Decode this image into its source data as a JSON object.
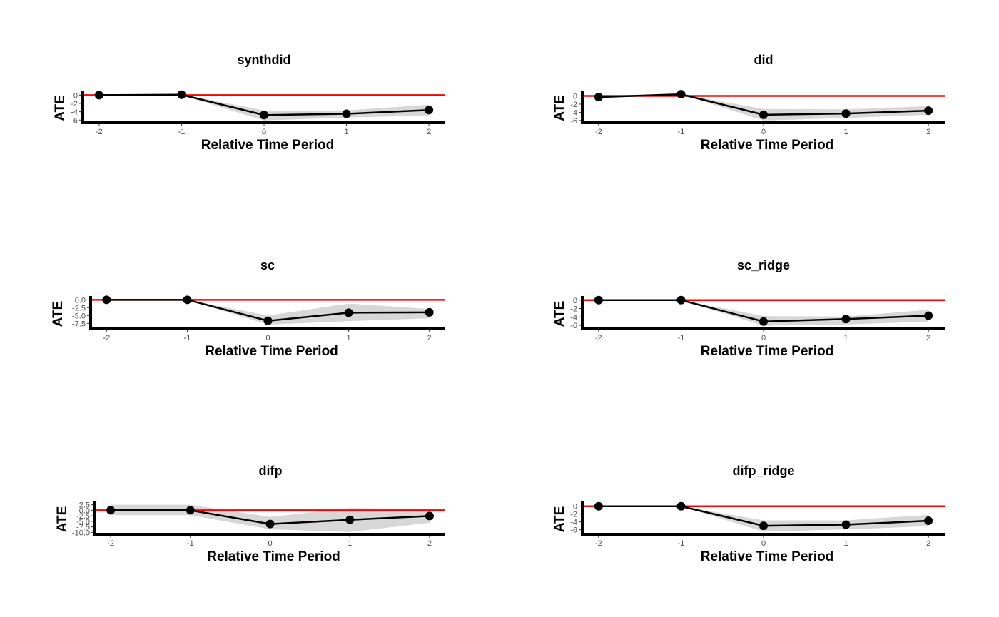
{
  "chart_data": [
    {
      "type": "line",
      "title": "synthdid",
      "xlabel": "Relative Time Period",
      "ylabel": "ATE",
      "x": [
        -2,
        -1,
        0,
        1,
        2
      ],
      "xticks": [
        "-2",
        "-1",
        "0",
        "1",
        "2"
      ],
      "yticks": [
        "0",
        "-2",
        "-4",
        "-6"
      ],
      "ylim": [
        -6.3,
        0.4
      ],
      "series": [
        {
          "values": [
            0,
            0.1,
            -4.8,
            -4.5,
            -3.6
          ]
        }
      ],
      "band": {
        "lower": [
          0,
          0,
          -6.1,
          -5.4,
          -4.9
        ],
        "upper": [
          0,
          0.2,
          -3.7,
          -3.7,
          -2.3
        ]
      },
      "reference_line": 0,
      "colors": {
        "line": "#000000",
        "reference": "#ff0000",
        "band": "#d3d3d3"
      },
      "grid": false
    },
    {
      "type": "line",
      "title": "did",
      "xlabel": "Relative Time Period",
      "ylabel": "ATE",
      "x": [
        -2,
        -1,
        0,
        1,
        2
      ],
      "xticks": [
        "-2",
        "-1",
        "0",
        "1",
        "2"
      ],
      "yticks": [
        "0",
        "-2",
        "-4",
        "-6"
      ],
      "ylim": [
        -6.2,
        0.6
      ],
      "series": [
        {
          "values": [
            -0.3,
            0.4,
            -4.6,
            -4.3,
            -3.6
          ]
        }
      ],
      "band": {
        "lower": [
          -0.3,
          0.4,
          -6.0,
          -5.4,
          -4.6
        ],
        "upper": [
          -0.3,
          0.4,
          -3.2,
          -3.3,
          -2.5
        ]
      },
      "reference_line": 0,
      "colors": {
        "line": "#000000",
        "reference": "#ff0000",
        "band": "#d3d3d3"
      },
      "grid": false
    },
    {
      "type": "line",
      "title": "sc",
      "xlabel": "Relative Time Period",
      "ylabel": "ATE",
      "x": [
        -2,
        -1,
        0,
        1,
        2
      ],
      "xticks": [
        "-2",
        "-1",
        "0",
        "1",
        "2"
      ],
      "yticks": [
        "0.0",
        "-2.5",
        "-5.0",
        "-7.5"
      ],
      "ylim": [
        -8.8,
        0.3
      ],
      "series": [
        {
          "values": [
            0,
            0,
            -6.7,
            -4.1,
            -4.0
          ]
        }
      ],
      "band": {
        "lower": [
          0,
          0,
          -7.9,
          -6.8,
          -5.9
        ],
        "upper": [
          0,
          0,
          -5.0,
          -1.2,
          -2.9
        ]
      },
      "reference_line": 0,
      "colors": {
        "line": "#000000",
        "reference": "#ff0000",
        "band": "#d3d3d3"
      },
      "grid": false
    },
    {
      "type": "line",
      "title": "sc_ridge",
      "xlabel": "Relative Time Period",
      "ylabel": "ATE",
      "x": [
        -2,
        -1,
        0,
        1,
        2
      ],
      "xticks": [
        "-2",
        "-1",
        "0",
        "1",
        "2"
      ],
      "yticks": [
        "0",
        "-2",
        "-4",
        "-6"
      ],
      "ylim": [
        -6.5,
        0.3
      ],
      "series": [
        {
          "values": [
            0,
            0,
            -5.1,
            -4.5,
            -3.7
          ]
        }
      ],
      "band": {
        "lower": [
          0,
          0,
          -6.1,
          -5.8,
          -5.1
        ],
        "upper": [
          0,
          0,
          -3.8,
          -3.9,
          -2.3
        ]
      },
      "reference_line": 0,
      "colors": {
        "line": "#000000",
        "reference": "#ff0000",
        "band": "#d3d3d3"
      },
      "grid": false
    },
    {
      "type": "line",
      "title": "difp",
      "xlabel": "Relative Time Period",
      "ylabel": "ATE",
      "x": [
        -2,
        -1,
        0,
        1,
        2
      ],
      "xticks": [
        "-2",
        "-1",
        "0",
        "1",
        "2"
      ],
      "yticks": [
        "2.5",
        "0.0",
        "-2.5",
        "-5.0",
        "-7.5",
        "-10.0"
      ],
      "ylim": [
        -10.2,
        2.7
      ],
      "series": [
        {
          "values": [
            0.0,
            0.0,
            -6.2,
            -4.3,
            -2.6
          ]
        }
      ],
      "band": {
        "lower": [
          -2.2,
          -2.2,
          -8.6,
          -9.8,
          -5.7
        ],
        "upper": [
          2.5,
          2.5,
          -3.0,
          1.0,
          0.5
        ]
      },
      "reference_line": 0,
      "colors": {
        "line": "#000000",
        "reference": "#ff0000",
        "band": "#d3d3d3"
      },
      "grid": false
    },
    {
      "type": "line",
      "title": "difp_ridge",
      "xlabel": "Relative Time Period",
      "ylabel": "ATE",
      "x": [
        -2,
        -1,
        0,
        1,
        2
      ],
      "xticks": [
        "-2",
        "-1",
        "0",
        "1",
        "2"
      ],
      "yticks": [
        "0",
        "-2",
        "-4",
        "-6"
      ],
      "ylim": [
        -6.8,
        0.5
      ],
      "series": [
        {
          "values": [
            0,
            0,
            -5.0,
            -4.7,
            -3.7
          ]
        }
      ],
      "band": {
        "lower": [
          0,
          0,
          -6.5,
          -5.9,
          -5.1
        ],
        "upper": [
          0,
          0,
          -3.6,
          -3.6,
          -2.2
        ]
      },
      "reference_line": 0,
      "colors": {
        "line": "#000000",
        "reference": "#ff0000",
        "band": "#d3d3d3"
      },
      "grid": false
    }
  ]
}
